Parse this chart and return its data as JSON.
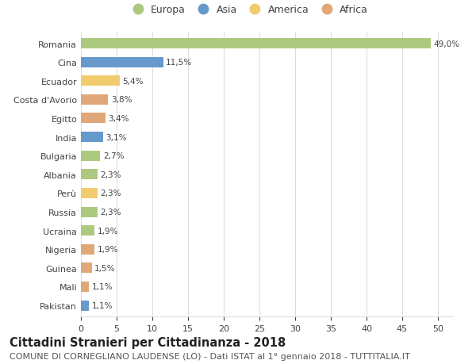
{
  "countries": [
    "Romania",
    "Cina",
    "Ecuador",
    "Costa d'Avorio",
    "Egitto",
    "India",
    "Bulgaria",
    "Albania",
    "Perù",
    "Russia",
    "Ucraina",
    "Nigeria",
    "Guinea",
    "Mali",
    "Pakistan"
  ],
  "values": [
    49.0,
    11.5,
    5.4,
    3.8,
    3.4,
    3.1,
    2.7,
    2.3,
    2.3,
    2.3,
    1.9,
    1.9,
    1.5,
    1.1,
    1.1
  ],
  "labels": [
    "49,0%",
    "11,5%",
    "5,4%",
    "3,8%",
    "3,4%",
    "3,1%",
    "2,7%",
    "2,3%",
    "2,3%",
    "2,3%",
    "1,9%",
    "1,9%",
    "1,5%",
    "1,1%",
    "1,1%"
  ],
  "continents": [
    "Europa",
    "Asia",
    "America",
    "Africa",
    "Africa",
    "Asia",
    "Europa",
    "Europa",
    "America",
    "Europa",
    "Europa",
    "Africa",
    "Africa",
    "Africa",
    "Asia"
  ],
  "continent_colors": {
    "Europa": "#adc97f",
    "Asia": "#6699cc",
    "America": "#f0cc6e",
    "Africa": "#e0a878"
  },
  "legend_order": [
    "Europa",
    "Asia",
    "America",
    "Africa"
  ],
  "title": "Cittadini Stranieri per Cittadinanza - 2018",
  "subtitle": "COMUNE DI CORNEGLIANO LAUDENSE (LO) - Dati ISTAT al 1° gennaio 2018 - TUTTITALIA.IT",
  "xlim": [
    0,
    52
  ],
  "xticks": [
    0,
    5,
    10,
    15,
    20,
    25,
    30,
    35,
    40,
    45,
    50
  ],
  "background_color": "#ffffff",
  "grid_color": "#dddddd",
  "bar_height": 0.55,
  "title_fontsize": 10.5,
  "subtitle_fontsize": 8,
  "label_fontsize": 7.5,
  "tick_fontsize": 8,
  "legend_fontsize": 9
}
